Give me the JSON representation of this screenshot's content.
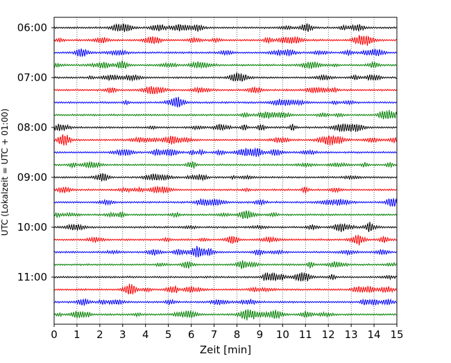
{
  "chart_data": {
    "type": "line",
    "subtype": "seismogram-dayplot",
    "xlabel": "Zeit  [min]",
    "ylabel": "UTC (Lokalzeit = UTC + 01:00)",
    "xlim": [
      0,
      15
    ],
    "x_ticks": [
      "0",
      "1",
      "2",
      "3",
      "4",
      "5",
      "6",
      "7",
      "8",
      "9",
      "10",
      "11",
      "12",
      "13",
      "14",
      "15"
    ],
    "y_ticks": [
      "06:00",
      "07:00",
      "08:00",
      "09:00",
      "10:00",
      "11:00"
    ],
    "trace_interval_minutes": 15,
    "start_time": "06:00",
    "trace_count": 24,
    "grid": "vertical dotted at each minute",
    "color_cycle": [
      "#000000",
      "#ff0000",
      "#0000ff",
      "#008000"
    ],
    "traces": [
      {
        "start": "06:00"
      },
      {
        "start": "06:15"
      },
      {
        "start": "06:30"
      },
      {
        "start": "06:45"
      },
      {
        "start": "07:00"
      },
      {
        "start": "07:15"
      },
      {
        "start": "07:30"
      },
      {
        "start": "07:45"
      },
      {
        "start": "08:00"
      },
      {
        "start": "08:15"
      },
      {
        "start": "08:30"
      },
      {
        "start": "08:45"
      },
      {
        "start": "09:00"
      },
      {
        "start": "09:15"
      },
      {
        "start": "09:30"
      },
      {
        "start": "09:45"
      },
      {
        "start": "10:00"
      },
      {
        "start": "10:15"
      },
      {
        "start": "10:30"
      },
      {
        "start": "10:45"
      },
      {
        "start": "11:00"
      },
      {
        "start": "11:15"
      },
      {
        "start": "11:30"
      },
      {
        "start": "11:45"
      }
    ]
  }
}
